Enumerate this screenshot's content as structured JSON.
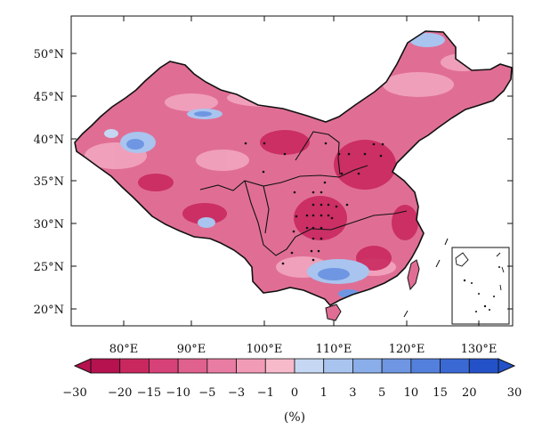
{
  "map": {
    "lat_labels": [
      "20°N",
      "25°N",
      "30°N",
      "35°N",
      "40°N",
      "45°N",
      "50°N"
    ],
    "lon_labels": [
      "80°E",
      "90°E",
      "100°E",
      "110°E",
      "120°E",
      "130°E"
    ],
    "lon_range": [
      73,
      135
    ],
    "lat_range": [
      18,
      54
    ],
    "region": "China",
    "inset": "South China Sea islands"
  },
  "colorbar": {
    "tick_labels": [
      "−30",
      "−20",
      "−15",
      "−10",
      "−5",
      "−3",
      "−1",
      "0",
      "1",
      "3",
      "5",
      "10",
      "15",
      "20",
      "30"
    ],
    "unit": "(%)",
    "colors": [
      "#b5124f",
      "#c9285f",
      "#d64277",
      "#e0608e",
      "#e97ca2",
      "#f19bb7",
      "#f6bacb",
      "#c5d7f3",
      "#a9c4ef",
      "#8aaee9",
      "#6e96e2",
      "#5380dc",
      "#3a69d4",
      "#2352c8"
    ]
  },
  "colors": {
    "land_base": "#e06e94",
    "land_dark": "#c9285f",
    "land_light": "#f2a9c1",
    "blue_light": "#a9c4ef",
    "blue_mid": "#6e96e2",
    "outline": "#111111"
  }
}
